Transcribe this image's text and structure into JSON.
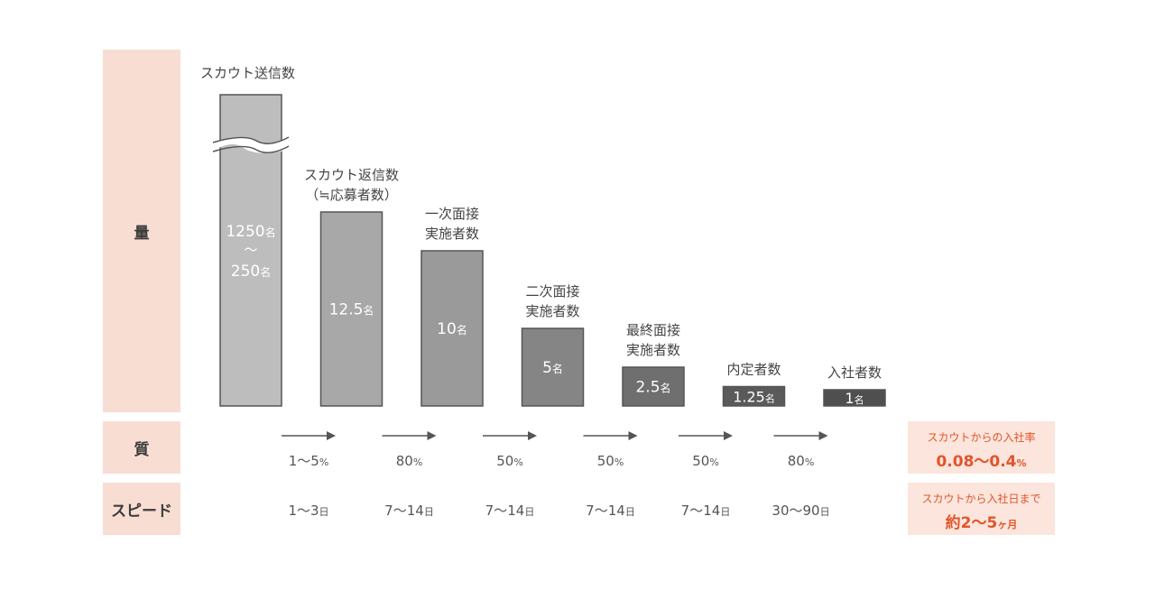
{
  "side_labels": {
    "quantity": "量",
    "quality": "質",
    "speed": "スピード"
  },
  "summary": {
    "rate_label": "スカウトからの入社率",
    "rate_value": "0.08〜0.4",
    "rate_unit": "%",
    "period_label": "スカウトから入社日まで",
    "period_value": "約2〜5",
    "period_unit": "ヶ月"
  },
  "chart_data": {
    "type": "bar",
    "categories": [
      [
        "スカウト送信数"
      ],
      [
        "スカウト返信数",
        "（≒応募者数）"
      ],
      [
        "一次面接",
        "実施者数"
      ],
      [
        "二次面接",
        "実施者数"
      ],
      [
        "最終面接",
        "実施者数"
      ],
      [
        "内定者数"
      ],
      [
        "入社者数"
      ]
    ],
    "series": [
      {
        "values": [
          250,
          12.5,
          10,
          5,
          2.5,
          1.25,
          1
        ]
      }
    ],
    "value_labels": [
      {
        "main": "1250",
        "unit": "名",
        "mid": "〜",
        "main2": "250",
        "unit2": "名"
      },
      {
        "main": "12.5",
        "unit": "名"
      },
      {
        "main": "10",
        "unit": "名"
      },
      {
        "main": "5",
        "unit": "名"
      },
      {
        "main": "2.5",
        "unit": "名"
      },
      {
        "main": "1.25",
        "unit": "名"
      },
      {
        "main": "1",
        "unit": "名"
      }
    ],
    "first_bar_axis_break": true,
    "bar_colors": [
      "#bdbdbd",
      "#a8a8a8",
      "#9a9a9a",
      "#858585",
      "#6f6f6f",
      "#5a5a5a",
      "#4f4f4f"
    ],
    "conversion_rates": [
      {
        "value": "1〜5",
        "unit": "%"
      },
      {
        "value": "80",
        "unit": "%"
      },
      {
        "value": "50",
        "unit": "%"
      },
      {
        "value": "50",
        "unit": "%"
      },
      {
        "value": "50",
        "unit": "%"
      },
      {
        "value": "80",
        "unit": "%"
      }
    ],
    "durations": [
      {
        "value": "1〜3",
        "unit": "日"
      },
      {
        "value": "7〜14",
        "unit": "日"
      },
      {
        "value": "7〜14",
        "unit": "日"
      },
      {
        "value": "7〜14",
        "unit": "日"
      },
      {
        "value": "7〜14",
        "unit": "日"
      },
      {
        "value": "30〜90",
        "unit": "日"
      }
    ]
  }
}
